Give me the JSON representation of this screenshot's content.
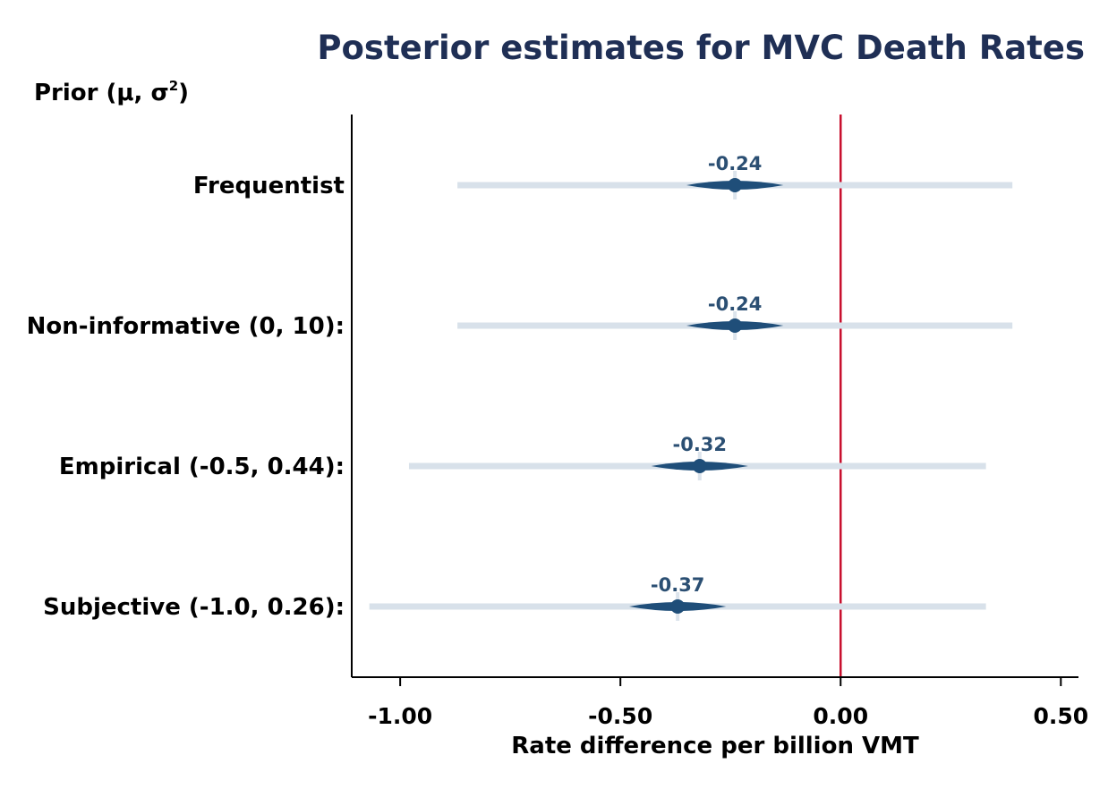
{
  "colors": {
    "accent": "#1f4e79",
    "label": "#2b4f73",
    "title": "#1f2f55",
    "ref_line": "#c8102e",
    "axis": "#000000",
    "light": "#d8e1ea"
  },
  "chart_data": {
    "type": "forest-interval",
    "title": "Posterior estimates for MVC Death Rates",
    "ylabel_prefix": "Prior (μ, σ",
    "ylabel_sup": "2",
    "ylabel_suffix": ")",
    "xlabel": "Rate difference per billion VMT",
    "xlim": [
      -1.11,
      0.54
    ],
    "xticks": [
      -1.0,
      -0.5,
      0.0,
      0.5
    ],
    "xtick_labels": [
      "-1.00",
      "-0.50",
      "0.00",
      "0.50"
    ],
    "reference_line": 0.0,
    "grid": false,
    "rows": [
      {
        "label": "Frequentist",
        "estimate": -0.24,
        "estimate_label": "-0.24",
        "low": -0.87,
        "high": 0.39
      },
      {
        "label": "Non-informative (0, 10):",
        "estimate": -0.24,
        "estimate_label": "-0.24",
        "low": -0.87,
        "high": 0.39
      },
      {
        "label": "Empirical (-0.5, 0.44):",
        "estimate": -0.32,
        "estimate_label": "-0.32",
        "low": -0.98,
        "high": 0.33
      },
      {
        "label": "Subjective (-1.0, 0.26):",
        "estimate": -0.37,
        "estimate_label": "-0.37",
        "low": -1.07,
        "high": 0.33
      }
    ]
  }
}
